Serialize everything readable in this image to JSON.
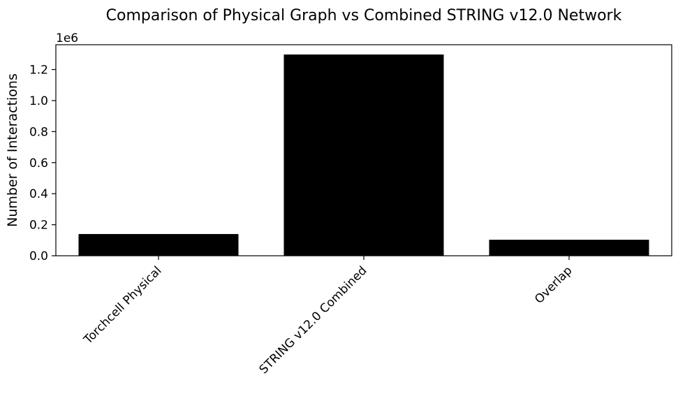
{
  "chart_data": {
    "type": "bar",
    "title": "Comparison of Physical Graph vs Combined STRING v12.0 Network",
    "xlabel": "",
    "ylabel": "Number of Interactions",
    "categories": [
      "Torchcell Physical",
      "STRING v12.0 Combined",
      "Overlap"
    ],
    "values": [
      140000,
      1297000,
      103000
    ],
    "ylim": [
      0,
      1360000
    ],
    "y_scale_label": "1e6",
    "y_ticks": [
      0,
      200000,
      400000,
      600000,
      800000,
      1000000,
      1200000
    ],
    "y_tick_labels": [
      "0.0",
      "0.2",
      "0.4",
      "0.6",
      "0.8",
      "1.0",
      "1.2"
    ],
    "bar_color": "#000000",
    "grid": false,
    "legend": "none"
  }
}
